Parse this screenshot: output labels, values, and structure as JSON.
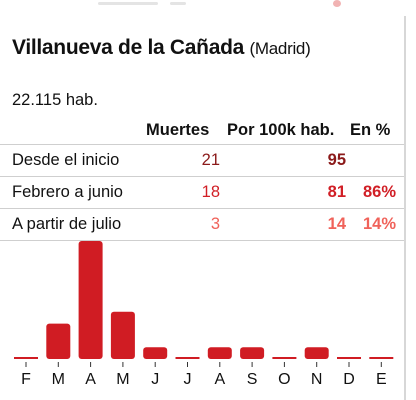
{
  "colors": {
    "row1": "#8b1a1a",
    "row2": "#d11f26",
    "row3": "#f0625a",
    "bar": "#d01c23",
    "text": "#111111"
  },
  "header": {
    "title": "Villanueva de la Cañada",
    "subtitle": "(Madrid)",
    "population": "22.115 hab."
  },
  "table": {
    "columns": [
      "Muertes",
      "Por 100k hab.",
      "En %"
    ],
    "rows": [
      {
        "label": "Desde el inicio",
        "deaths": "21",
        "per100k": "95",
        "pct": ""
      },
      {
        "label": "Febrero a junio",
        "deaths": "18",
        "per100k": "81",
        "pct": "86%"
      },
      {
        "label": "A partir de julio",
        "deaths": "3",
        "per100k": "14",
        "pct": "14%"
      }
    ]
  },
  "chart_data": {
    "type": "bar",
    "categories": [
      "F",
      "M",
      "A",
      "M",
      "J",
      "J",
      "A",
      "S",
      "O",
      "N",
      "D",
      "E"
    ],
    "values": [
      0,
      3,
      10,
      4,
      1,
      0,
      1,
      1,
      0,
      1,
      0,
      0
    ],
    "ylim": [
      0,
      10
    ],
    "grid": false,
    "legend": "none"
  }
}
